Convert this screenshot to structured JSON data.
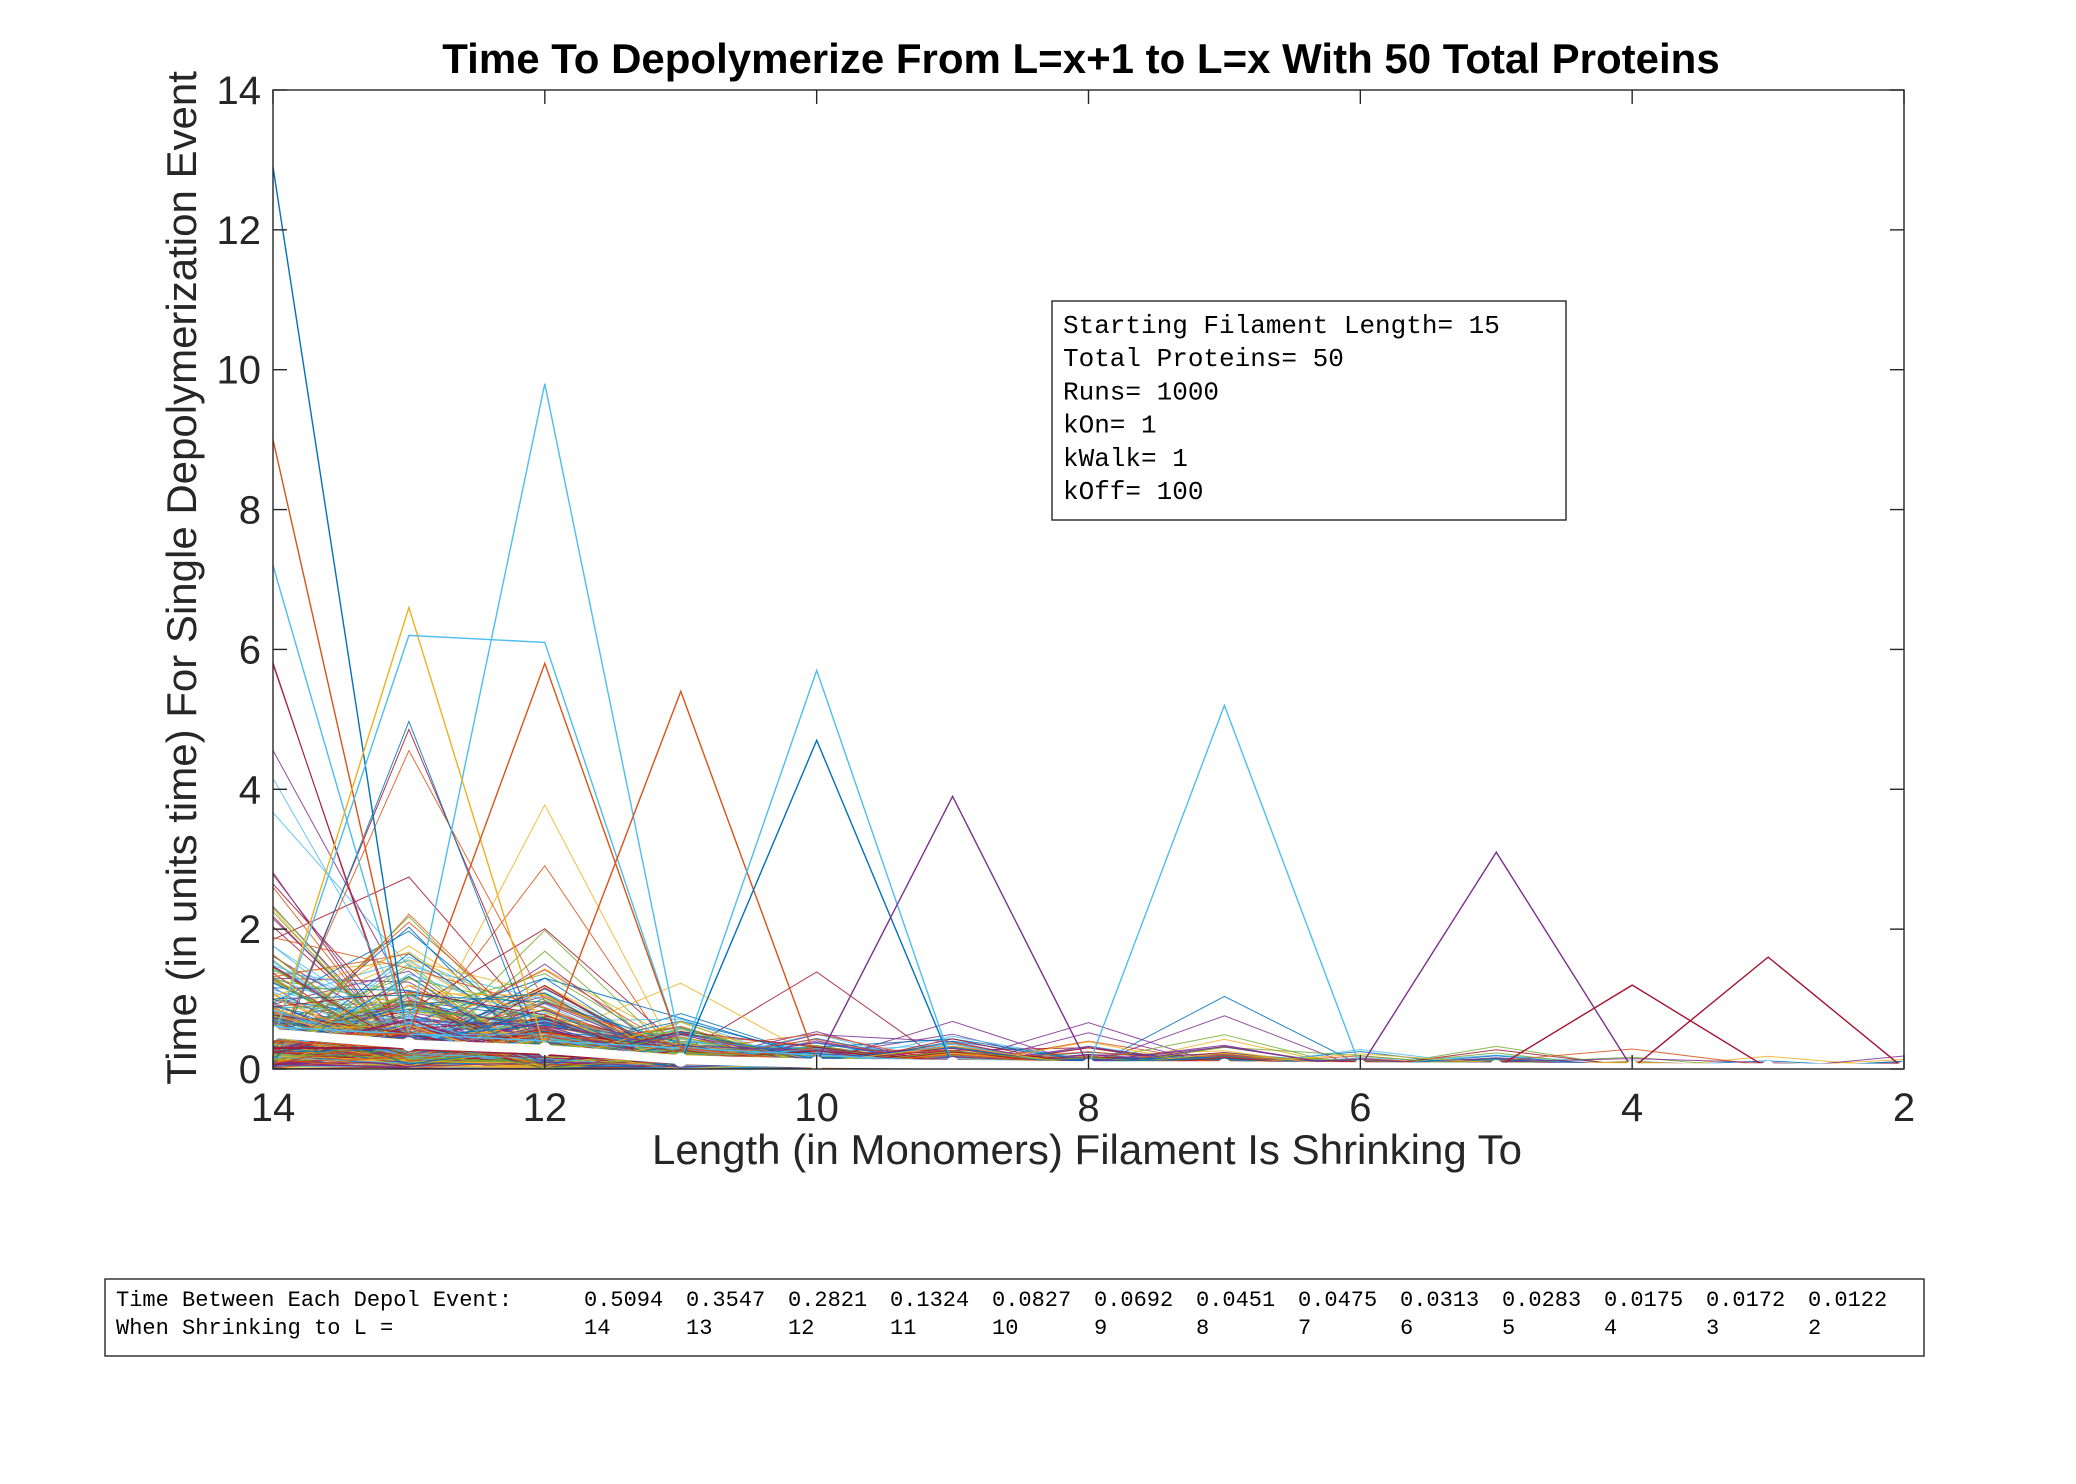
{
  "chart_data": {
    "type": "line",
    "title": "Time To Depolymerize From L=x+1 to L=x With 50 Total Proteins",
    "xlabel": "Length (in Monomers) Filament Is Shrinking To",
    "ylabel": "Time (in units time) For Single Depolymerization Event",
    "xlim": [
      14,
      2
    ],
    "ylim": [
      0,
      14
    ],
    "x_reversed": true,
    "x_ticks": [
      "14",
      "12",
      "10",
      "8",
      "6",
      "4",
      "2"
    ],
    "y_ticks": [
      "0",
      "2",
      "4",
      "6",
      "8",
      "10",
      "12",
      "14"
    ],
    "grid": false,
    "x": [
      14,
      13,
      12,
      11,
      10,
      9,
      8,
      7,
      6,
      5,
      4,
      3,
      2
    ],
    "mean_series": {
      "values": [
        0.5094,
        0.3547,
        0.2821,
        0.1324,
        0.0827,
        0.0692,
        0.0451,
        0.0475,
        0.0313,
        0.0283,
        0.0175,
        0.0172,
        0.0122
      ],
      "color": "#ffffff"
    },
    "highlighted_runs": [
      {
        "values": [
          12.9,
          0.3,
          0.2,
          0.15,
          0.1,
          0.05,
          0.05,
          0.04,
          0.03,
          0.02,
          0.02,
          0.01,
          0.01
        ],
        "color": "#0072BD"
      },
      {
        "values": [
          0.6,
          0.5,
          9.8,
          0.3,
          0.2,
          0.1,
          0.05,
          0.05,
          0.03,
          0.02,
          0.01,
          0.01,
          0.01
        ],
        "color": "#4DBEEE"
      },
      {
        "values": [
          9.0,
          0.4,
          0.3,
          0.2,
          0.1,
          0.08,
          0.05,
          0.04,
          0.03,
          0.02,
          0.01,
          0.01,
          0.01
        ],
        "color": "#D95319"
      },
      {
        "values": [
          7.2,
          0.5,
          0.4,
          0.3,
          0.1,
          0.05,
          0.05,
          0.04,
          0.03,
          0.02,
          0.01,
          0.01,
          0.01
        ],
        "color": "#4DBEEE"
      },
      {
        "values": [
          0.4,
          6.6,
          0.3,
          0.2,
          0.1,
          0.05,
          0.05,
          0.04,
          0.03,
          0.02,
          0.01,
          0.01,
          0.01
        ],
        "color": "#EDB120"
      },
      {
        "values": [
          0.4,
          6.2,
          6.1,
          0.3,
          0.1,
          0.05,
          0.05,
          0.04,
          0.03,
          0.02,
          0.01,
          0.01,
          0.01
        ],
        "color": "#4DBEEE"
      },
      {
        "values": [
          0.5,
          0.5,
          5.8,
          0.3,
          0.1,
          0.05,
          0.05,
          0.04,
          0.03,
          0.02,
          0.01,
          0.01,
          0.01
        ],
        "color": "#D95319"
      },
      {
        "values": [
          0.4,
          0.3,
          0.3,
          5.4,
          0.1,
          0.05,
          0.05,
          0.04,
          0.03,
          0.02,
          0.01,
          0.01,
          0.01
        ],
        "color": "#D95319"
      },
      {
        "values": [
          0.3,
          0.3,
          0.2,
          0.1,
          5.7,
          0.05,
          0.05,
          0.04,
          0.03,
          0.02,
          0.01,
          0.01,
          0.01
        ],
        "color": "#4DBEEE"
      },
      {
        "values": [
          0.3,
          0.3,
          0.2,
          0.1,
          4.7,
          0.05,
          0.05,
          0.04,
          0.03,
          0.02,
          0.01,
          0.01,
          0.01
        ],
        "color": "#0072BD"
      },
      {
        "values": [
          0.3,
          0.3,
          0.2,
          0.1,
          0.1,
          3.9,
          0.05,
          0.04,
          0.03,
          0.02,
          0.01,
          0.01,
          0.01
        ],
        "color": "#7E2F8E"
      },
      {
        "values": [
          0.3,
          0.3,
          0.2,
          0.1,
          0.1,
          0.05,
          0.05,
          5.2,
          0.03,
          0.02,
          0.01,
          0.01,
          0.01
        ],
        "color": "#4DBEEE"
      },
      {
        "values": [
          0.3,
          0.3,
          0.2,
          0.1,
          0.1,
          0.05,
          0.05,
          0.04,
          0.03,
          3.1,
          0.01,
          0.01,
          0.01
        ],
        "color": "#7E2F8E"
      },
      {
        "values": [
          0.3,
          0.3,
          0.2,
          0.1,
          0.1,
          0.05,
          0.05,
          0.04,
          0.03,
          0.02,
          1.2,
          0.01,
          0.01
        ],
        "color": "#A2142F"
      },
      {
        "values": [
          0.3,
          0.3,
          0.2,
          0.1,
          0.1,
          0.05,
          0.05,
          0.04,
          0.03,
          0.02,
          0.01,
          1.6,
          0.01
        ],
        "color": "#A2142F"
      }
    ],
    "colors": [
      "#0072BD",
      "#D95319",
      "#EDB120",
      "#7E2F8E",
      "#77AC30",
      "#4DBEEE",
      "#A2142F"
    ],
    "annotation_box": {
      "lines": [
        "Starting Filament Length= 15",
        "Total Proteins= 50",
        "Runs= 1000",
        "kOn= 1",
        "kWalk= 1",
        "kOff= 100"
      ]
    },
    "bottom_table": {
      "row1_label": "Time Between Each Depol Event:",
      "row1_values": [
        "0.5094",
        "0.3547",
        "0.2821",
        "0.1324",
        "0.0827",
        "0.0692",
        "0.0451",
        "0.0475",
        "0.0313",
        "0.0283",
        "0.0175",
        "0.0172",
        "0.0122"
      ],
      "row2_label": "When Shrinking to L =",
      "row2_values": [
        "14",
        "13",
        "12",
        "11",
        "10",
        "9",
        "8",
        "7",
        "6",
        "5",
        "4",
        "3",
        "2"
      ]
    }
  }
}
